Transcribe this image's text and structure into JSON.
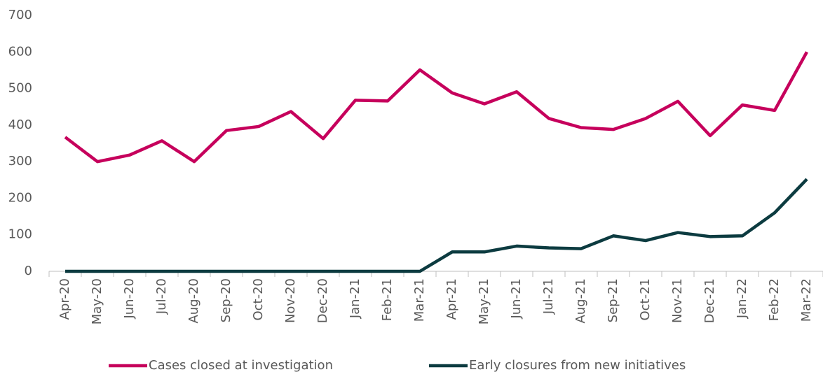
{
  "chart_data": {
    "type": "line",
    "categories": [
      "Apr-20",
      "May-20",
      "Jun-20",
      "Jul-20",
      "Aug-20",
      "Sep-20",
      "Oct-20",
      "Nov-20",
      "Dec-20",
      "Jan-21",
      "Feb-21",
      "Mar-21",
      "Apr-21",
      "May-21",
      "Jun-21",
      "Jul-21",
      "Aug-21",
      "Sep-21",
      "Oct-21",
      "Nov-21",
      "Dec-21",
      "Jan-22",
      "Feb-22",
      "Mar-22"
    ],
    "series": [
      {
        "name": "Cases closed at investigation",
        "color": "#c6005c",
        "values": [
          367,
          300,
          318,
          357,
          300,
          385,
          396,
          437,
          363,
          468,
          466,
          551,
          488,
          458,
          491,
          418,
          393,
          388,
          418,
          465,
          371,
          455,
          440,
          600
        ]
      },
      {
        "name": "Early closures from new initiatives",
        "color": "#0c3b40",
        "values": [
          0,
          0,
          0,
          0,
          0,
          0,
          0,
          0,
          0,
          0,
          0,
          0,
          53,
          53,
          69,
          64,
          62,
          97,
          84,
          106,
          95,
          97,
          160,
          252
        ]
      }
    ],
    "ylim": [
      0,
      700
    ],
    "yticks": [
      0,
      100,
      200,
      300,
      400,
      500,
      600,
      700
    ],
    "grid": false,
    "legend": "bottom"
  }
}
